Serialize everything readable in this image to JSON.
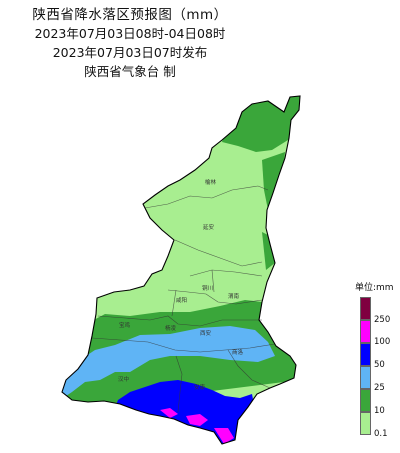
{
  "header": {
    "title": "陕西省降水落区预报图（mm）",
    "period": "2023年07月03日08时-04日08时",
    "issued": "2023年07月03日07时发布",
    "agency": "陕西省气象台  制"
  },
  "map": {
    "region": "陕西省",
    "cities": [
      {
        "name": "榆林"
      },
      {
        "name": "延安"
      },
      {
        "name": "铜川"
      },
      {
        "name": "渭南"
      },
      {
        "name": "咸阳"
      },
      {
        "name": "宝鸡"
      },
      {
        "name": "杨凌"
      },
      {
        "name": "西安"
      },
      {
        "name": "商洛"
      },
      {
        "name": "汉中"
      },
      {
        "name": "安康"
      }
    ]
  },
  "legend": {
    "title": "单位:mm",
    "bins": [
      {
        "label": "250",
        "color": "#7f0040"
      },
      {
        "label": "100",
        "color": "#ff00ff"
      },
      {
        "label": "50",
        "color": "#0000ff"
      },
      {
        "label": "25",
        "color": "#5fb4f5"
      },
      {
        "label": "10",
        "color": "#3aa63a"
      },
      {
        "label": "0.1",
        "color": "#a8ee90"
      }
    ]
  }
}
